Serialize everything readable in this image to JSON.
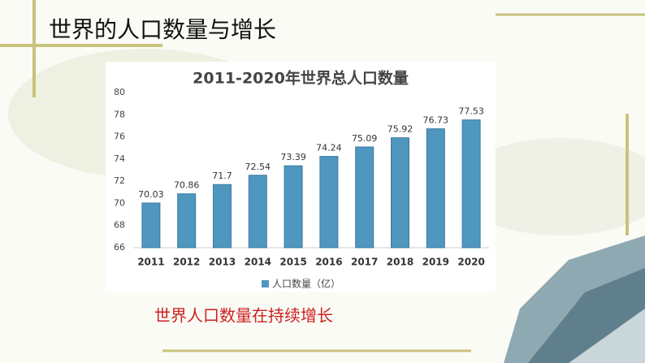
{
  "slide_title": "世界的人口数量与增长",
  "caption": "世界人口数量在持续增长",
  "chart_data": {
    "type": "bar",
    "title": "2011-2020年世界总人口数量",
    "categories": [
      "2011",
      "2012",
      "2013",
      "2014",
      "2015",
      "2016",
      "2017",
      "2018",
      "2019",
      "2020"
    ],
    "series": [
      {
        "name": "人口数量（亿）",
        "color": "#4f97bf",
        "values": [
          70.03,
          70.86,
          71.7,
          72.54,
          73.39,
          74.24,
          75.09,
          75.92,
          76.73,
          77.53
        ]
      }
    ],
    "ylim": [
      66,
      80
    ],
    "yticks": [
      66,
      68,
      70,
      72,
      74,
      76,
      78,
      80
    ],
    "grid": false,
    "legend": "bottom"
  }
}
